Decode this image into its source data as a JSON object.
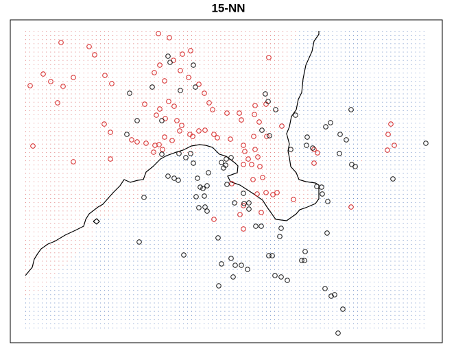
{
  "chart_data": {
    "type": "scatter",
    "title": "15-NN",
    "k": 15,
    "xlim": [
      15,
      645
    ],
    "ylim": [
      500,
      29
    ],
    "series": [
      {
        "color": "#d42020",
        "grid_color": "#e07a7a",
        "x": [
          231,
          247,
          89,
          130,
          138,
          266,
          278,
          392,
          63,
          74,
          92,
          44,
          107,
          153,
          163,
          225,
          233,
          253,
          263,
          240,
          275,
          290,
          298,
          305,
          310,
          84,
          211,
          233,
          246,
          254,
          228,
          241,
          258,
          265,
          262,
          277,
          290,
          299,
          331,
          349,
          352,
          372,
          371,
          388,
          378,
          389,
          411,
          152,
          161,
          192,
          200,
          213,
          226,
          232,
          224,
          237,
          48,
          107,
          161,
          240,
          251,
          281,
          312,
          317,
          336,
          355,
          372,
          370,
          357,
          362,
          376,
          367,
          379,
          383,
          369,
          388,
          375,
          398,
          404,
          428,
          355,
          355,
          350,
          355,
          381,
          312,
          458,
          458,
          463,
          566,
          570,
          575,
          565,
          512,
          338
        ],
        "values": [
          49,
          55,
          62,
          68,
          80,
          79,
          74,
          84,
          108,
          119,
          126,
          125,
          113,
          110,
          122,
          106,
          95,
          88,
          103,
          118,
          113,
          123,
          136,
          150,
          160,
          150,
          152,
          159,
          148,
          155,
          168,
          173,
          176,
          183,
          191,
          196,
          191,
          190,
          165,
          165,
          175,
          154,
          167,
          152,
          178,
          199,
          184,
          181,
          193,
          204,
          207,
          209,
          212,
          211,
          222,
          218,
          213,
          236,
          232,
          200,
          205,
          199,
          196,
          201,
          203,
          212,
          218,
          199,
          221,
          232,
          229,
          240,
          243,
          259,
          262,
          281,
          283,
          284,
          281,
          291,
          240,
          300,
          313,
          334,
          310,
          320,
          218,
          238,
          223,
          196,
          181,
          212,
          219,
          302,
          268
        ]
      },
      {
        "color": "#111111",
        "grid_color": "#6f8fc8",
        "x": [
          245,
          248,
          282,
          263,
          189,
          222,
          285,
          387,
          391,
          402,
          512,
          200,
          236,
          185,
          382,
          393,
          431,
          448,
          475,
          482,
          496,
          505,
          447,
          456,
          424,
          236,
          261,
          271,
          278,
          245,
          254,
          260,
          282,
          323,
          329,
          326,
          330,
          288,
          292,
          296,
          302,
          304,
          286,
          290,
          299,
          298,
          302,
          331,
          355,
          210,
          342,
          356,
          363,
          363,
          373,
          381,
          410,
          408,
          478,
          469,
          470,
          203,
          268,
          318,
          352,
          392,
          397,
          401,
          410,
          323,
          337,
          343,
          361,
          477,
          445,
          440,
          444,
          419,
          340,
          319,
          474,
          483,
          488,
          500,
          493,
          621,
          573,
          513,
          518,
          462,
          337,
          495
        ],
        "values": [
          82,
          91,
          95,
          132,
          136,
          127,
          127,
          137,
          148,
          160,
          160,
          176,
          176,
          196,
          190,
          198,
          168,
          200,
          185,
          179,
          196,
          204,
          212,
          216,
          218,
          225,
          224,
          230,
          224,
          257,
          260,
          263,
          238,
          237,
          241,
          245,
          232,
          260,
          273,
          275,
          271,
          252,
          287,
          303,
          302,
          286,
          308,
          269,
          282,
          288,
          296,
          297,
          296,
          305,
          330,
          330,
          333,
          345,
          294,
          273,
          283,
          353,
          372,
          347,
          387,
          373,
          373,
          402,
          404,
          385,
          377,
          387,
          393,
          340,
          367,
          380,
          380,
          409,
          404,
          417,
          421,
          432,
          430,
          451,
          486,
          209,
          261,
          240,
          243,
          272,
          230,
          224
        ]
      }
    ],
    "boundary": {
      "color": "#000000",
      "x": [
        37,
        42,
        47,
        50,
        55,
        60,
        70,
        80,
        95,
        110,
        122,
        125,
        130,
        143,
        150,
        157,
        165,
        170,
        175,
        181,
        190,
        201,
        209,
        213,
        223,
        234,
        243,
        257,
        267,
        279,
        291,
        300,
        310,
        320,
        330,
        343,
        347,
        346,
        332,
        336,
        350,
        370,
        383,
        390,
        395,
        402,
        418,
        432,
        437,
        446,
        460,
        465,
        465,
        460,
        446,
        436,
        432,
        424,
        422,
        420,
        422,
        418,
        422,
        425,
        432,
        435,
        440,
        442,
        446,
        455,
        458,
        465,
        465,
        null,
        136,
        141,
        145,
        141,
        136
      ],
      "y": [
        402,
        396,
        390,
        378,
        370,
        363,
        356,
        352,
        343,
        336,
        330,
        320,
        312,
        302,
        298,
        290,
        281,
        276,
        271,
        262,
        266,
        263,
        262,
        251,
        243,
        232,
        227,
        222,
        219,
        213,
        211,
        212,
        215,
        225,
        228,
        238,
        242,
        252,
        257,
        265,
        270,
        283,
        292,
        303,
        310,
        320,
        322,
        312,
        306,
        303,
        297,
        290,
        270,
        267,
        265,
        262,
        252,
        243,
        230,
        220,
        210,
        195,
        185,
        170,
        160,
        145,
        135,
        115,
        95,
        75,
        60,
        50,
        45,
        null,
        323,
        319,
        323,
        327,
        323
      ]
    }
  }
}
